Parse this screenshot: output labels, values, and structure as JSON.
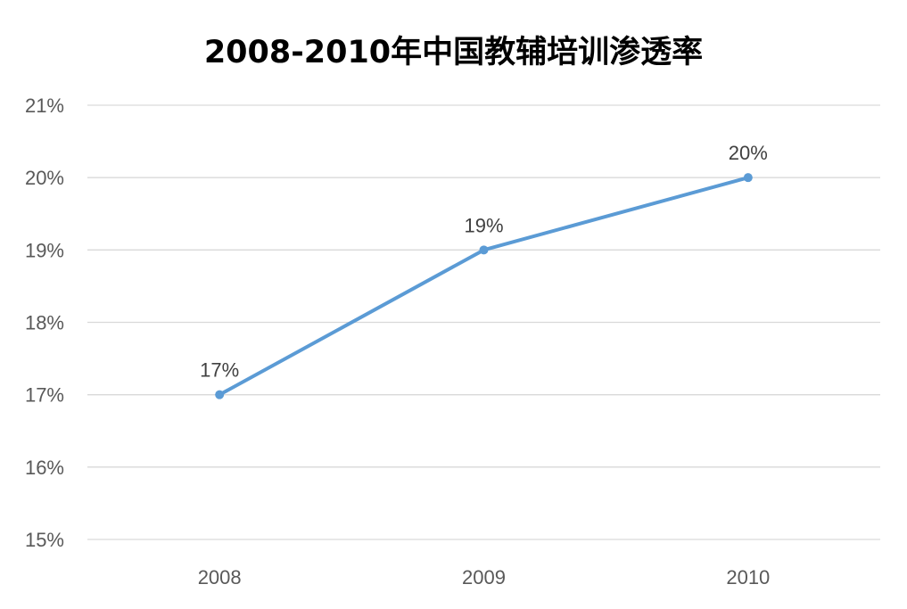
{
  "chart_data": {
    "type": "line",
    "title": "2008-2010年中国教辅培训渗透率",
    "xlabel": "",
    "ylabel": "",
    "categories": [
      "2008",
      "2009",
      "2010"
    ],
    "series": [
      {
        "values": [
          17,
          19,
          20
        ],
        "data_labels": [
          "17%",
          "19%",
          "20%"
        ],
        "color": "#5b9bd5"
      }
    ],
    "ylim": [
      15,
      21
    ],
    "yticks": [
      "15%",
      "16%",
      "17%",
      "18%",
      "19%",
      "20%",
      "21%"
    ],
    "grid": true,
    "legend": "none",
    "marker": "circle"
  }
}
